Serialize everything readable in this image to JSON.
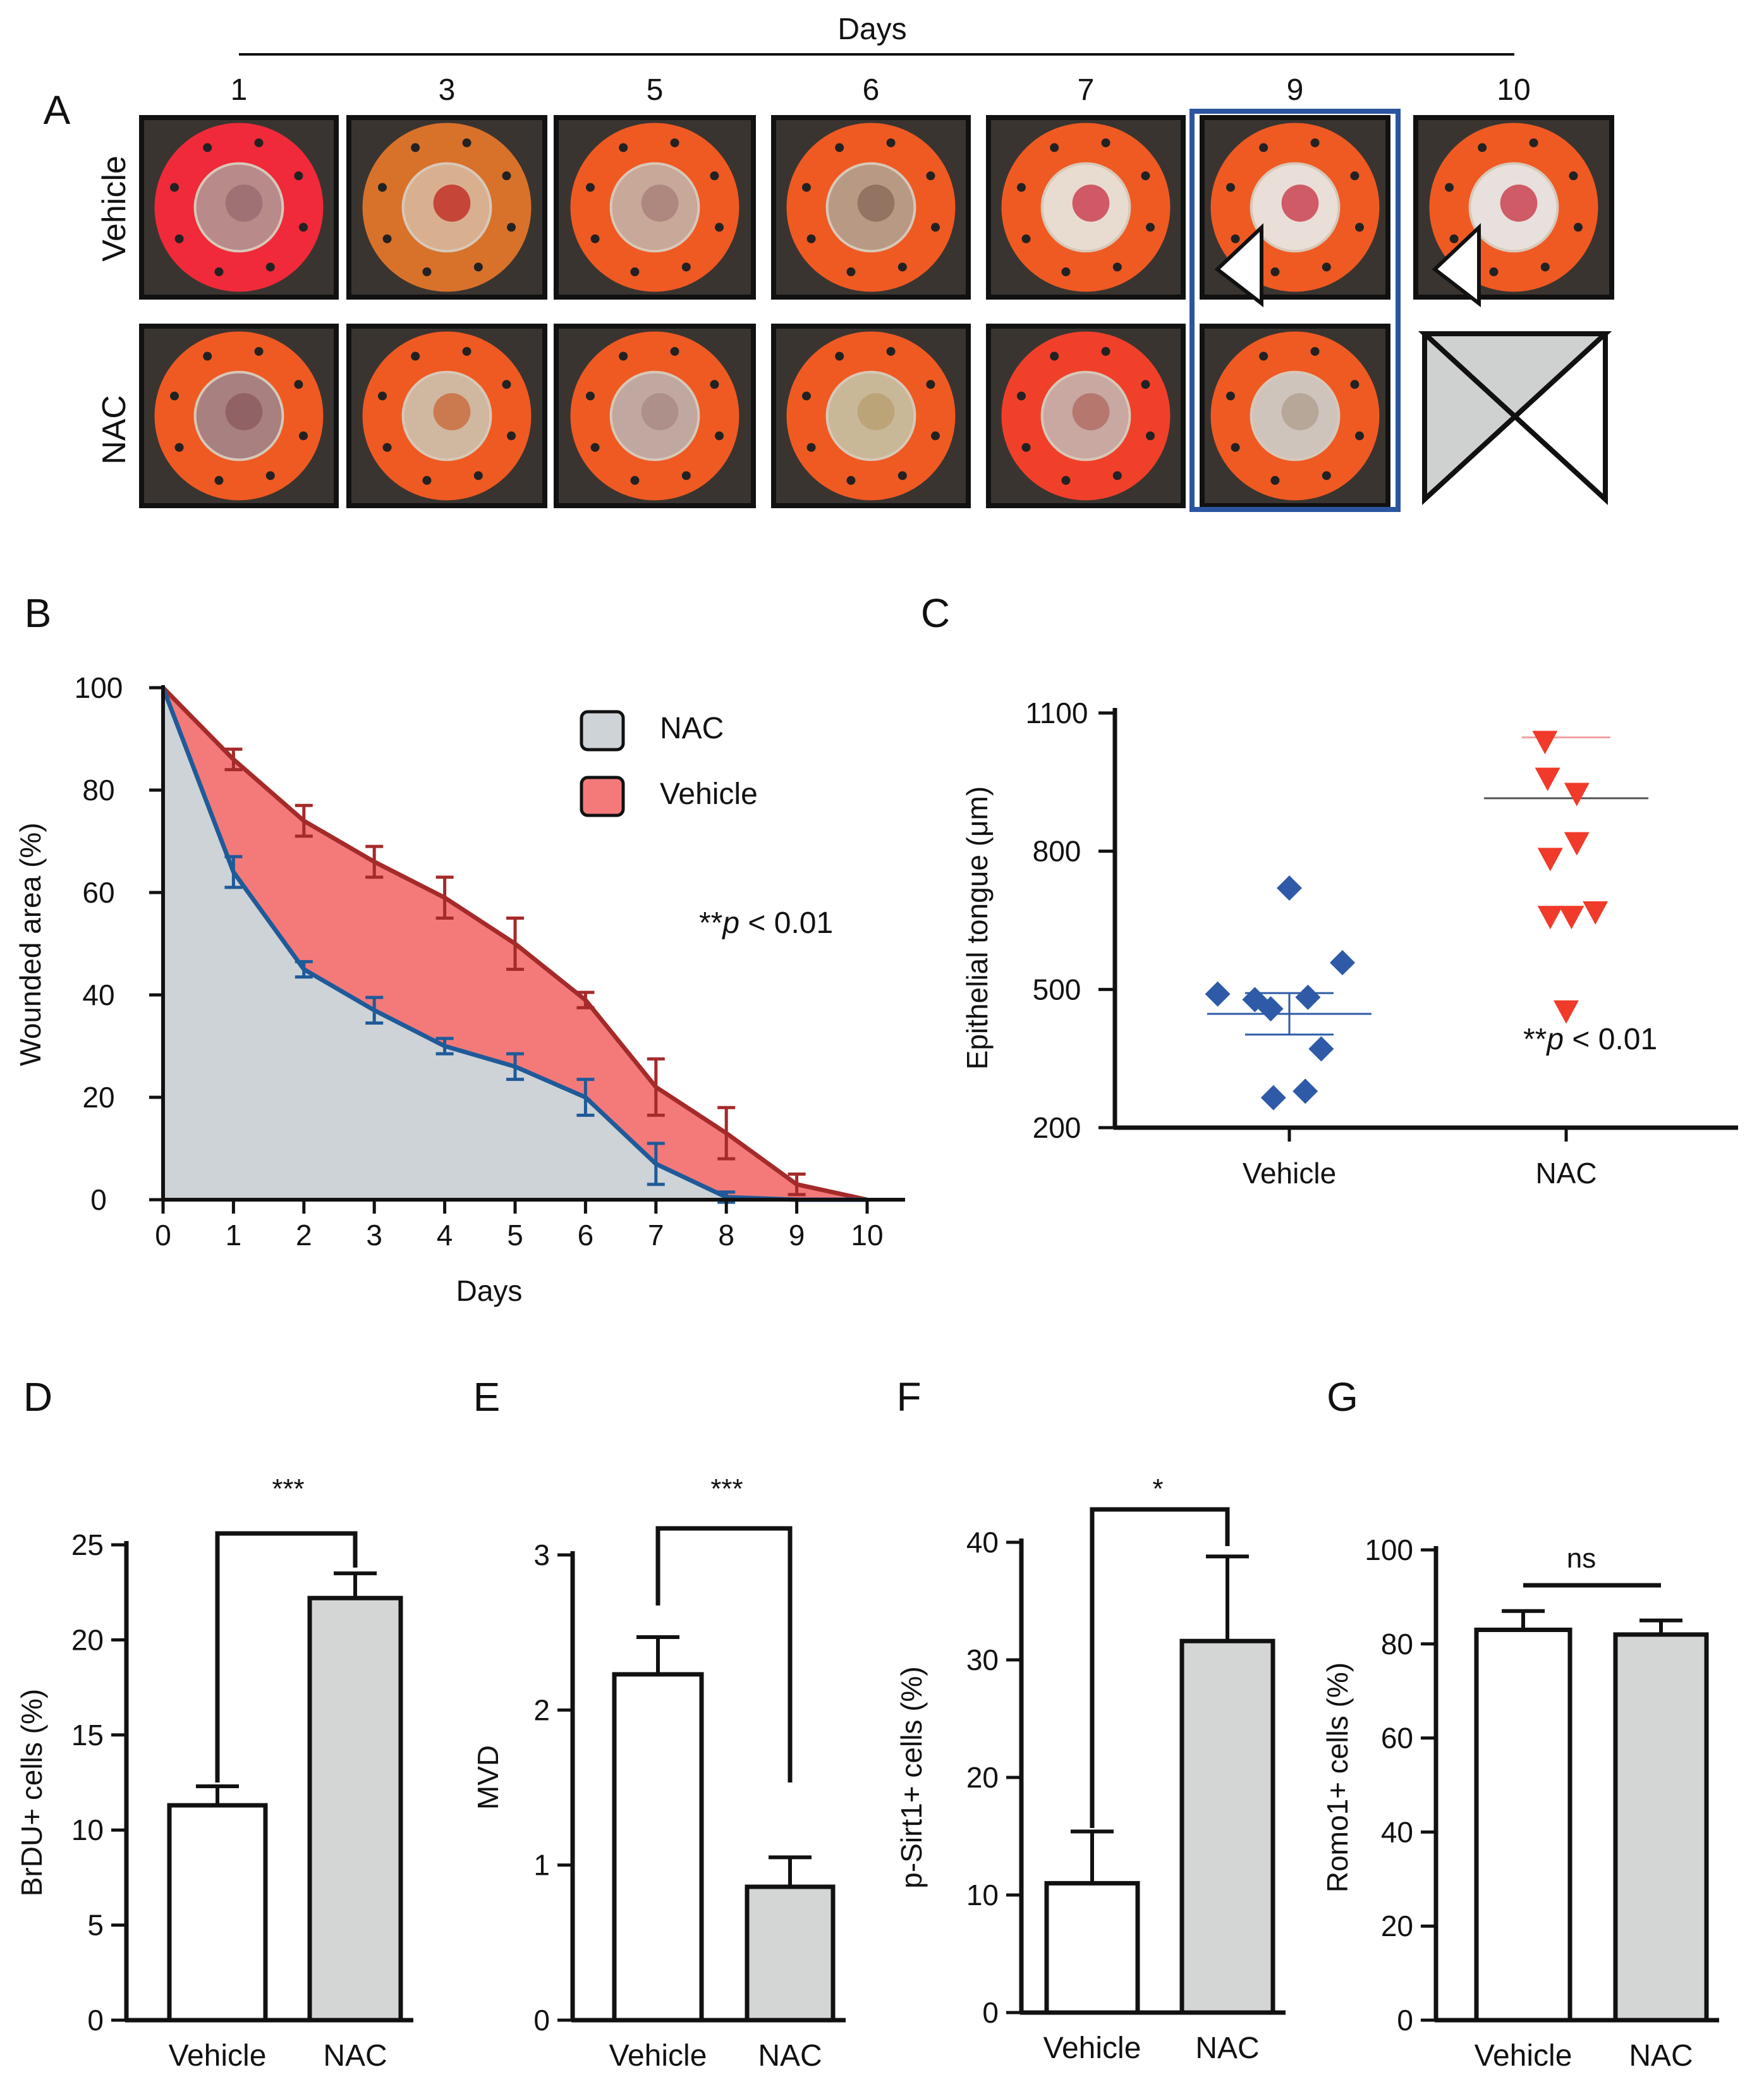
{
  "panel_letters": [
    "A",
    "B",
    "C",
    "D",
    "E",
    "F",
    "G"
  ],
  "panel_a": {
    "header": "Days",
    "days": [
      "1",
      "3",
      "5",
      "6",
      "7",
      "9",
      "10"
    ],
    "rows": [
      "Vehicle",
      "NAC"
    ]
  },
  "colors": {
    "vehicle_line": "#a52a2a",
    "vehicle_fill": "#f47a7a",
    "nac_line": "#1f5a99",
    "nac_fill": "#cdd3d6",
    "vehicle_marker": "#2e5aa8",
    "nac_marker": "#f03a2a",
    "bar_nac": "#d4d6d6",
    "bar_vehicle": "#ffffff",
    "highlight_box": "#2b55a0",
    "wound_orange": "#ef5a22"
  },
  "chart_data": [
    {
      "panel": "B",
      "type": "area",
      "title": "",
      "xlabel": "Days",
      "ylabel": "Wounded area (%)",
      "xlim": [
        0,
        10
      ],
      "ylim": [
        0,
        100
      ],
      "x_ticks": [
        "0",
        "1",
        "2",
        "3",
        "4",
        "5",
        "6",
        "7",
        "8",
        "9",
        "10"
      ],
      "y_ticks": [
        "0",
        "20",
        "40",
        "60",
        "80",
        "100"
      ],
      "legend": [
        "NAC",
        "Vehicle"
      ],
      "legend_position": "top-right",
      "annotation": "**p < 0.01",
      "x": [
        0,
        1,
        2,
        3,
        4,
        5,
        6,
        7,
        8,
        9,
        10
      ],
      "series": [
        {
          "name": "Vehicle",
          "values": [
            100,
            86,
            74,
            66,
            59,
            50,
            39,
            22,
            13,
            3,
            0
          ],
          "errors": [
            0,
            2,
            3,
            3,
            4,
            5,
            1.5,
            5.5,
            5,
            2,
            0
          ]
        },
        {
          "name": "NAC",
          "values": [
            100,
            64,
            45,
            37,
            30,
            26,
            20,
            7,
            0.5,
            0,
            0
          ],
          "errors": [
            0,
            3,
            1.5,
            2.5,
            1.5,
            2.5,
            3.5,
            4,
            1,
            0,
            0
          ]
        }
      ]
    },
    {
      "panel": "C",
      "type": "scatter",
      "title": "",
      "xlabel": "",
      "ylabel": "Epithelial tongue (μm)",
      "ylim": [
        200,
        1100
      ],
      "y_ticks": [
        "200",
        "500",
        "800",
        "1100"
      ],
      "categories": [
        "Vehicle",
        "NAC"
      ],
      "annotation": "**p < 0.01",
      "series": [
        {
          "name": "Vehicle",
          "marker": "diamond",
          "mean": 447,
          "sem": 45,
          "points": [
            [
              0.0,
              720
            ],
            [
              -0.27,
              490
            ],
            [
              -0.13,
              478
            ],
            [
              -0.07,
              458
            ],
            [
              0.07,
              483
            ],
            [
              0.2,
              558
            ],
            [
              0.12,
              371
            ],
            [
              -0.06,
              265
            ],
            [
              0.06,
              279
            ]
          ]
        },
        {
          "name": "NAC",
          "marker": "triangle-down",
          "mean": 915,
          "points": [
            [
              -0.08,
              1038
            ],
            [
              -0.07,
              958
            ],
            [
              0.04,
              925
            ],
            [
              -0.06,
              784
            ],
            [
              0.04,
              818
            ],
            [
              -0.06,
              658
            ],
            [
              0.02,
              658
            ],
            [
              0.11,
              668
            ],
            [
              0.0,
              453
            ]
          ]
        }
      ]
    },
    {
      "panel": "D",
      "type": "bar",
      "title": "",
      "ylabel": "BrDU+ cells (%)",
      "categories": [
        "Vehicle",
        "NAC"
      ],
      "values": [
        11.3,
        22.2
      ],
      "errors": [
        1.0,
        1.3
      ],
      "ylim": [
        0,
        25
      ],
      "y_ticks": [
        "0",
        "5",
        "10",
        "15",
        "20",
        "25"
      ],
      "significance": "***"
    },
    {
      "panel": "E",
      "type": "bar",
      "title": "",
      "ylabel": "MVD",
      "categories": [
        "Vehicle",
        "NAC"
      ],
      "values": [
        2.23,
        0.86
      ],
      "errors": [
        0.24,
        0.19
      ],
      "ylim": [
        0,
        3
      ],
      "y_ticks": [
        "0",
        "1",
        "2",
        "3"
      ],
      "significance": "***"
    },
    {
      "panel": "F",
      "type": "bar",
      "title": "",
      "ylabel": "p-Sirt1+ cells (%)",
      "categories": [
        "Vehicle",
        "NAC"
      ],
      "values": [
        11.0,
        31.6
      ],
      "errors": [
        4.4,
        7.2
      ],
      "ylim": [
        0,
        40
      ],
      "y_ticks": [
        "0",
        "10",
        "20",
        "30",
        "40"
      ],
      "significance": "*"
    },
    {
      "panel": "G",
      "type": "bar",
      "title": "",
      "ylabel": "Romo1+ cells (%)",
      "categories": [
        "Vehicle",
        "NAC"
      ],
      "values": [
        83,
        82
      ],
      "errors": [
        4,
        3
      ],
      "ylim": [
        0,
        100
      ],
      "y_ticks": [
        "0",
        "20",
        "40",
        "60",
        "80",
        "100"
      ],
      "significance": "ns"
    }
  ]
}
